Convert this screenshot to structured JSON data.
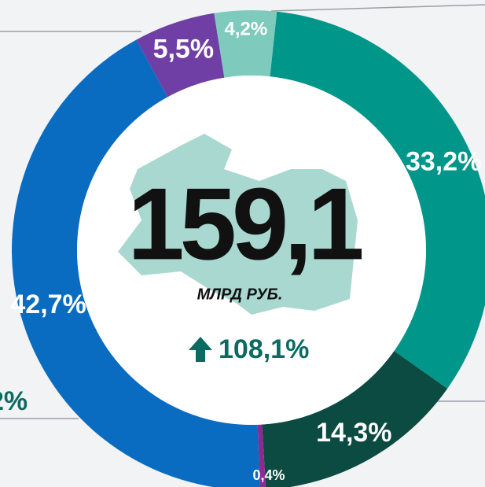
{
  "chart_data": {
    "type": "donut",
    "values": [
      4.2,
      33.2,
      14.3,
      0.4,
      42.7,
      5.5
    ],
    "value_labels": [
      "4,2%",
      "33,2%",
      "14,3%",
      "0,4%",
      "42,7%",
      "5,5%"
    ],
    "colors": [
      "#7ecbbd",
      "#00968a",
      "#0b4b42",
      "#8b2b8f",
      "#0a6cc0",
      "#6f3fa6"
    ],
    "center_value": "159,1",
    "center_unit": "МЛРД РУБ.",
    "growth": "108,1%",
    "side_label": "2%"
  }
}
